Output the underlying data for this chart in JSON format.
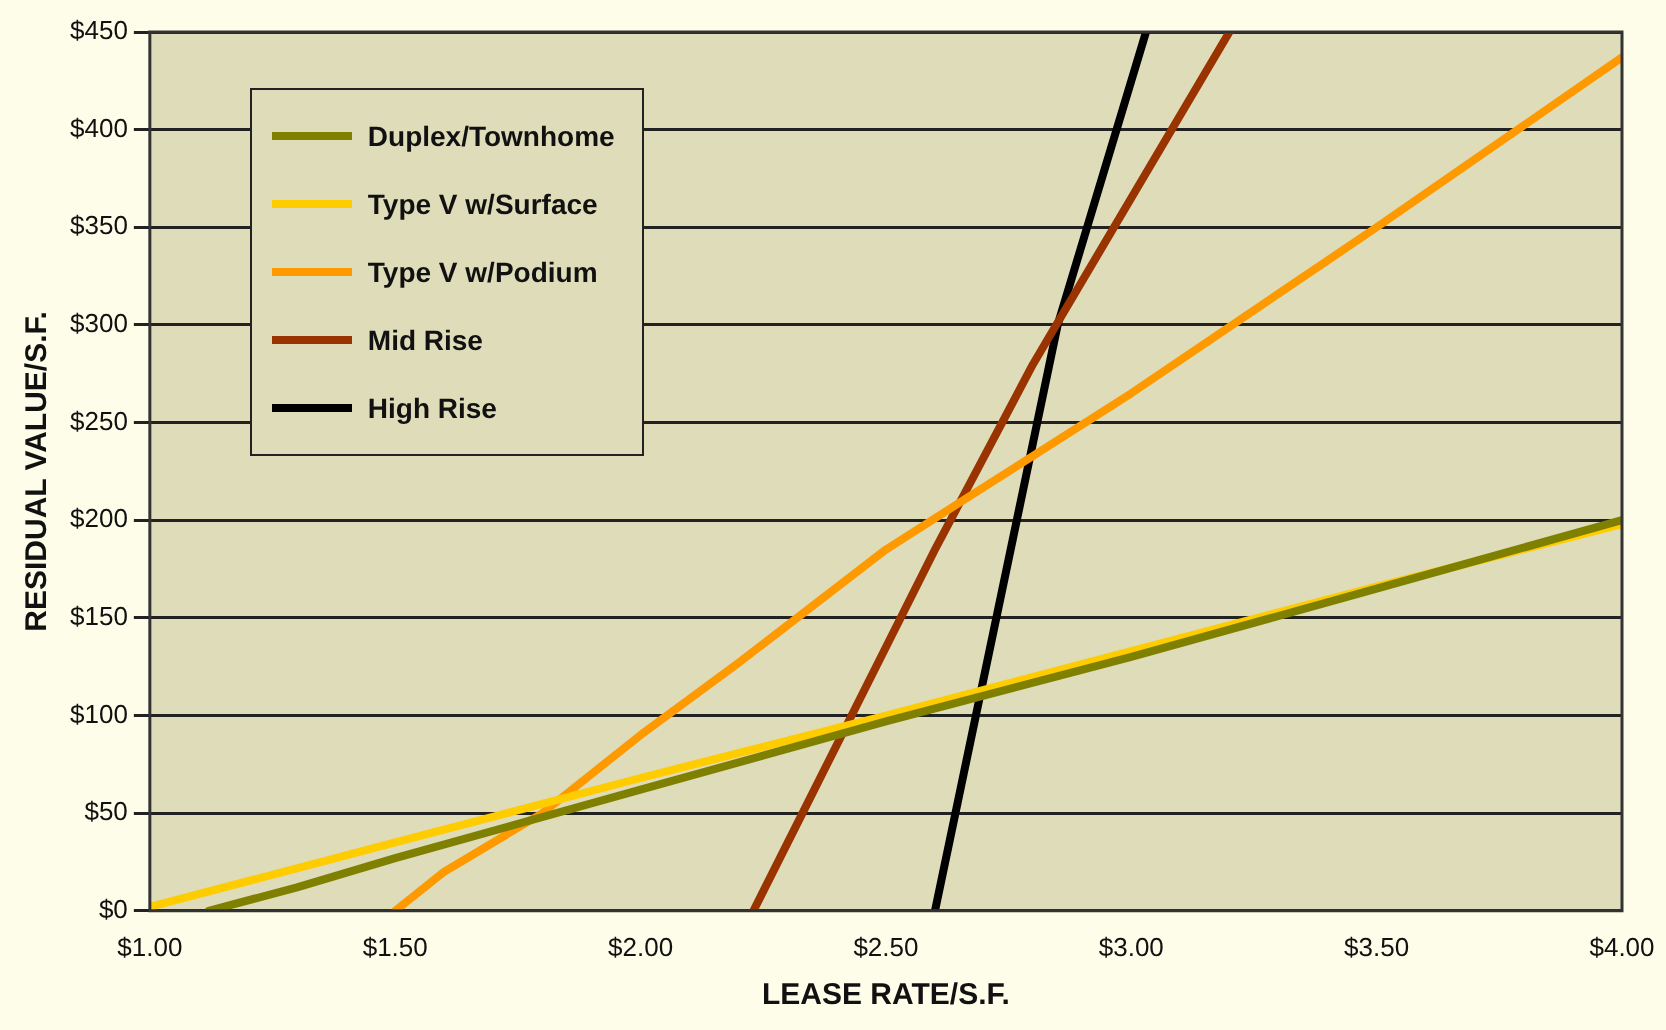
{
  "chart_data": {
    "type": "line",
    "xlabel": "LEASE RATE/S.F.",
    "ylabel": "RESIDUAL VALUE/S.F.",
    "xlim": [
      1,
      4
    ],
    "xticks": [
      {
        "value": 1,
        "label": "$1.00"
      },
      {
        "value": 1.5,
        "label": "$1.50"
      },
      {
        "value": 2,
        "label": "$2.00"
      },
      {
        "value": 2.5,
        "label": "$2.50"
      },
      {
        "value": 3,
        "label": "$3.00"
      },
      {
        "value": 3.5,
        "label": "$3.50"
      },
      {
        "value": 4,
        "label": "$4.00"
      }
    ],
    "ylim": [
      0,
      450
    ],
    "yticks": [
      {
        "value": 0,
        "label": "$0"
      },
      {
        "value": 50,
        "label": "$50"
      },
      {
        "value": 100,
        "label": "$100"
      },
      {
        "value": 150,
        "label": "$150"
      },
      {
        "value": 200,
        "label": "$200"
      },
      {
        "value": 250,
        "label": "$250"
      },
      {
        "value": 300,
        "label": "$300"
      },
      {
        "value": 350,
        "label": "$350"
      },
      {
        "value": 400,
        "label": "$400"
      },
      {
        "value": 450,
        "label": "$450"
      }
    ],
    "grid": "y",
    "legend": "top left",
    "marker": "none",
    "line_style": "solid",
    "series": [
      {
        "name": "Duplex/Townhome",
        "color": "#808000",
        "x": [
          1.12,
          1.3,
          1.5,
          2,
          2.5,
          3,
          3.5,
          4
        ],
        "values": [
          0,
          12,
          27,
          62,
          97,
          130,
          165,
          200
        ]
      },
      {
        "name": "Type V w/Surface",
        "color": "#ffcc00",
        "x": [
          1,
          1.5,
          2,
          2.5,
          3,
          3.5,
          4
        ],
        "values": [
          2,
          35,
          68,
          100,
          133,
          166,
          198
        ]
      },
      {
        "name": "Type V w/Podium",
        "color": "#ff9900",
        "x": [
          1.5,
          1.6,
          1.8,
          2,
          2.2,
          2.5,
          3,
          3.5,
          4
        ],
        "values": [
          0,
          20,
          50,
          90,
          127,
          185,
          265,
          350,
          437
        ]
      },
      {
        "name": "Mid Rise",
        "color": "#993300",
        "x": [
          2.23,
          2.35,
          2.45,
          2.6,
          2.8,
          3,
          3.2
        ],
        "values": [
          0,
          60,
          110,
          185,
          280,
          365,
          450
        ]
      },
      {
        "name": "High Rise",
        "color": "#000000",
        "x": [
          2.6,
          2.85,
          3.03
        ],
        "values": [
          0,
          300,
          450
        ]
      }
    ]
  }
}
